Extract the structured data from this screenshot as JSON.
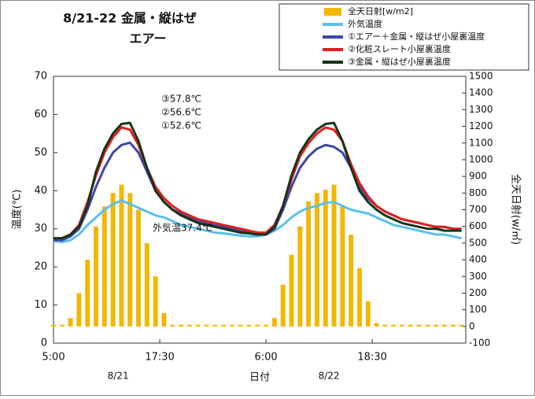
{
  "chart_data": {
    "type": "line",
    "title": "8/21-22  金属・縦はぜ",
    "subtitle": "エアー",
    "ylabel": "温度(℃)",
    "y2label": "全天日射(w/㎡)",
    "xlabel": "日付",
    "legend": "top-right",
    "grid": false,
    "xlim": [
      5,
      53.5
    ],
    "xticks": [
      {
        "value": 5,
        "label": "5:00"
      },
      {
        "value": 17.5,
        "label": "17:30"
      },
      {
        "value": 30,
        "label": "6:00"
      },
      {
        "value": 42.5,
        "label": "18:30"
      }
    ],
    "date_labels": [
      {
        "value": 12.6,
        "label": "8/21"
      },
      {
        "value": 37.4,
        "label": "8/22"
      }
    ],
    "ylim": [
      0,
      70
    ],
    "yticks": [
      0,
      10,
      20,
      30,
      40,
      50,
      60,
      70
    ],
    "y2lim": [
      -100,
      1500
    ],
    "y2ticks": [
      -100,
      0,
      100,
      200,
      300,
      400,
      500,
      600,
      700,
      800,
      900,
      1000,
      1100,
      1200,
      1300,
      1400,
      1500
    ],
    "annotations": [
      "③57.8℃",
      "②56.6℃",
      "①52.6℃",
      "外気温37.4℃"
    ],
    "x": [
      5,
      6,
      7,
      8,
      9,
      10,
      11,
      12,
      13,
      14,
      15,
      16,
      17,
      18,
      19,
      20,
      21,
      22,
      23,
      24,
      25,
      26,
      27,
      28,
      29,
      30,
      31,
      32,
      33,
      34,
      35,
      36,
      37,
      38,
      39,
      40,
      41,
      42,
      43,
      44,
      45,
      46,
      47,
      48,
      49,
      50,
      51,
      52,
      53
    ],
    "series": [
      {
        "name": "全天日射[w/m2]",
        "type": "bar",
        "axis": "y2",
        "color": "#f2b705",
        "values": [
          10,
          10,
          50,
          200,
          400,
          600,
          720,
          800,
          850,
          800,
          700,
          500,
          300,
          80,
          10,
          10,
          10,
          10,
          10,
          10,
          10,
          10,
          10,
          10,
          10,
          10,
          50,
          250,
          430,
          600,
          750,
          800,
          820,
          850,
          720,
          550,
          350,
          150,
          20,
          10,
          10,
          10,
          10,
          10,
          10,
          10,
          10,
          10,
          10
        ]
      },
      {
        "name": "外気温度",
        "color": "#5bc0eb",
        "values": [
          26.8,
          26.5,
          27,
          28.5,
          31,
          33,
          35,
          36.5,
          37.4,
          36.5,
          35.5,
          34.5,
          33.5,
          33,
          32,
          31,
          30.5,
          30,
          29.5,
          29,
          28.8,
          28.5,
          28.2,
          28,
          28,
          28.5,
          29.5,
          31,
          33,
          34.5,
          35.5,
          36,
          36.8,
          37,
          36,
          35,
          34.5,
          34,
          33,
          32,
          31,
          30.5,
          30,
          29.5,
          29,
          28.5,
          28.5,
          28,
          27.5
        ]
      },
      {
        "name": "①エアー＋金属・縦はぜ小屋裏温度",
        "color": "#3a48a8",
        "values": [
          27,
          27,
          28,
          30,
          35,
          41,
          46,
          50,
          52,
          52.6,
          50,
          45,
          40,
          37,
          35,
          34,
          33,
          32,
          31.5,
          31,
          30.5,
          30,
          29.5,
          29,
          28.5,
          28.5,
          30,
          35,
          41,
          46,
          49,
          51,
          52,
          51.5,
          50,
          46,
          41,
          38,
          36,
          34.5,
          33.5,
          32.5,
          32,
          31.5,
          31,
          30.5,
          30.5,
          30,
          30
        ]
      },
      {
        "name": "②化粧スレート小屋裏温度",
        "color": "#e02020",
        "values": [
          27.5,
          27.5,
          28.5,
          31,
          37,
          44,
          50,
          54,
          56.6,
          56,
          52,
          46,
          41,
          38,
          36,
          34.5,
          33.5,
          32.5,
          32,
          31.5,
          31,
          30.5,
          30,
          29.5,
          29,
          29,
          31,
          36,
          43,
          49,
          52.5,
          55,
          56.6,
          56,
          53,
          47,
          42,
          38.5,
          36,
          34.5,
          33.5,
          32.5,
          32,
          31.5,
          31,
          30.5,
          30.5,
          30,
          30
        ]
      },
      {
        "name": "③金属・縦はぜ小屋裏温度",
        "color": "#173417",
        "values": [
          27.5,
          27.5,
          28.5,
          30.5,
          36,
          45,
          51,
          55,
          57.5,
          57.8,
          53,
          46,
          40,
          37,
          35,
          33.5,
          32.5,
          31.5,
          31,
          30.5,
          30,
          29.5,
          29,
          28.8,
          28.5,
          28.5,
          30.5,
          36,
          44,
          50,
          53.5,
          56,
          57.5,
          57.8,
          53,
          46,
          40,
          37,
          35,
          33.5,
          32.5,
          31.5,
          31,
          30.5,
          30,
          30,
          29.5,
          29.5,
          29.5
        ]
      }
    ]
  }
}
